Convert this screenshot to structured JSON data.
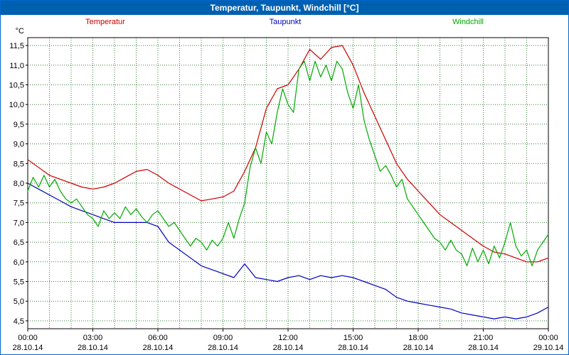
{
  "window": {
    "title": "Temperatur, Taupunkt, Windchill [°C]"
  },
  "chart_data": {
    "type": "line",
    "title": "Temperatur, Taupunkt, Windchill [°C]",
    "y_unit": "°C",
    "ylim": [
      4.3,
      11.7
    ],
    "x_range": [
      0,
      24
    ],
    "x_grid_step_hours": 1,
    "grid_color": "#3a7a3a",
    "legend_position": "top",
    "y_ticks": [
      {
        "value": 11.5,
        "label": "11,5"
      },
      {
        "value": 11.0,
        "label": "11,0"
      },
      {
        "value": 10.5,
        "label": "10,5"
      },
      {
        "value": 10.0,
        "label": "10,0"
      },
      {
        "value": 9.5,
        "label": "9,5"
      },
      {
        "value": 9.0,
        "label": "9,0"
      },
      {
        "value": 8.5,
        "label": "8,5"
      },
      {
        "value": 8.0,
        "label": "8,0"
      },
      {
        "value": 7.5,
        "label": "7,5"
      },
      {
        "value": 7.0,
        "label": "7,0"
      },
      {
        "value": 6.5,
        "label": "6,5"
      },
      {
        "value": 6.0,
        "label": "6,0"
      },
      {
        "value": 5.5,
        "label": "5,5"
      },
      {
        "value": 5.0,
        "label": "5,0"
      },
      {
        "value": 4.5,
        "label": "4,5"
      }
    ],
    "x_ticks": [
      {
        "hour": 0,
        "time": "00:00",
        "date": "28.10.14"
      },
      {
        "hour": 3,
        "time": "03:00",
        "date": "28.10.14"
      },
      {
        "hour": 6,
        "time": "06:00",
        "date": "28.10.14"
      },
      {
        "hour": 9,
        "time": "09:00",
        "date": "28.10.14"
      },
      {
        "hour": 12,
        "time": "12:00",
        "date": "28.10.14"
      },
      {
        "hour": 15,
        "time": "15:00",
        "date": "28.10.14"
      },
      {
        "hour": 18,
        "time": "18:00",
        "date": "28.10.14"
      },
      {
        "hour": 21,
        "time": "21:00",
        "date": "28.10.14"
      },
      {
        "hour": 24,
        "time": "00:00",
        "date": "29.10.14"
      }
    ],
    "series": [
      {
        "name": "Temperatur",
        "color": "#cc0000",
        "step_hours": 0.5,
        "values": [
          8.6,
          8.4,
          8.2,
          8.1,
          8.0,
          7.9,
          7.85,
          7.9,
          8.0,
          8.15,
          8.3,
          8.35,
          8.2,
          8.0,
          7.85,
          7.7,
          7.55,
          7.6,
          7.65,
          7.8,
          8.3,
          8.9,
          9.9,
          10.4,
          10.5,
          10.9,
          11.4,
          11.15,
          11.45,
          11.5,
          11.0,
          10.3,
          9.7,
          9.1,
          8.5,
          8.1,
          7.8,
          7.5,
          7.2,
          7.0,
          6.8,
          6.6,
          6.4,
          6.25,
          6.2,
          6.1,
          6.0,
          6.0,
          6.1
        ]
      },
      {
        "name": "Taupunkt",
        "color": "#0000bb",
        "step_hours": 0.5,
        "values": [
          8.0,
          7.85,
          7.7,
          7.55,
          7.4,
          7.3,
          7.2,
          7.1,
          7.0,
          7.0,
          7.0,
          7.0,
          6.9,
          6.5,
          6.3,
          6.1,
          5.9,
          5.8,
          5.7,
          5.6,
          5.95,
          5.6,
          5.55,
          5.5,
          5.6,
          5.65,
          5.55,
          5.65,
          5.6,
          5.65,
          5.6,
          5.5,
          5.4,
          5.3,
          5.1,
          5.0,
          4.95,
          4.9,
          4.85,
          4.8,
          4.7,
          4.65,
          4.6,
          4.55,
          4.6,
          4.55,
          4.6,
          4.7,
          4.85
        ]
      },
      {
        "name": "Windchill",
        "color": "#00aa00",
        "step_hours": 0.25,
        "values": [
          7.8,
          8.15,
          7.9,
          8.2,
          7.9,
          8.1,
          7.8,
          7.6,
          7.5,
          7.6,
          7.4,
          7.2,
          7.1,
          6.9,
          7.3,
          7.1,
          7.25,
          7.1,
          7.4,
          7.2,
          7.35,
          7.15,
          7.0,
          7.2,
          7.3,
          7.1,
          6.9,
          7.0,
          6.8,
          6.6,
          6.4,
          6.6,
          6.5,
          6.3,
          6.55,
          6.4,
          6.6,
          7.0,
          6.6,
          7.1,
          7.5,
          8.4,
          8.9,
          8.5,
          9.3,
          9.0,
          9.8,
          10.4,
          10.0,
          9.8,
          10.9,
          11.1,
          10.6,
          11.1,
          10.7,
          11.0,
          10.6,
          11.1,
          10.9,
          10.3,
          9.9,
          10.5,
          9.6,
          9.1,
          8.7,
          8.3,
          8.45,
          8.2,
          7.9,
          8.1,
          7.6,
          7.4,
          7.2,
          7.0,
          6.8,
          6.6,
          6.5,
          6.3,
          6.55,
          6.3,
          6.2,
          5.9,
          6.35,
          6.0,
          6.3,
          5.95,
          6.4,
          6.1,
          6.5,
          7.0,
          6.4,
          6.15,
          6.3,
          5.9,
          6.3,
          6.5,
          6.7
        ]
      }
    ]
  }
}
